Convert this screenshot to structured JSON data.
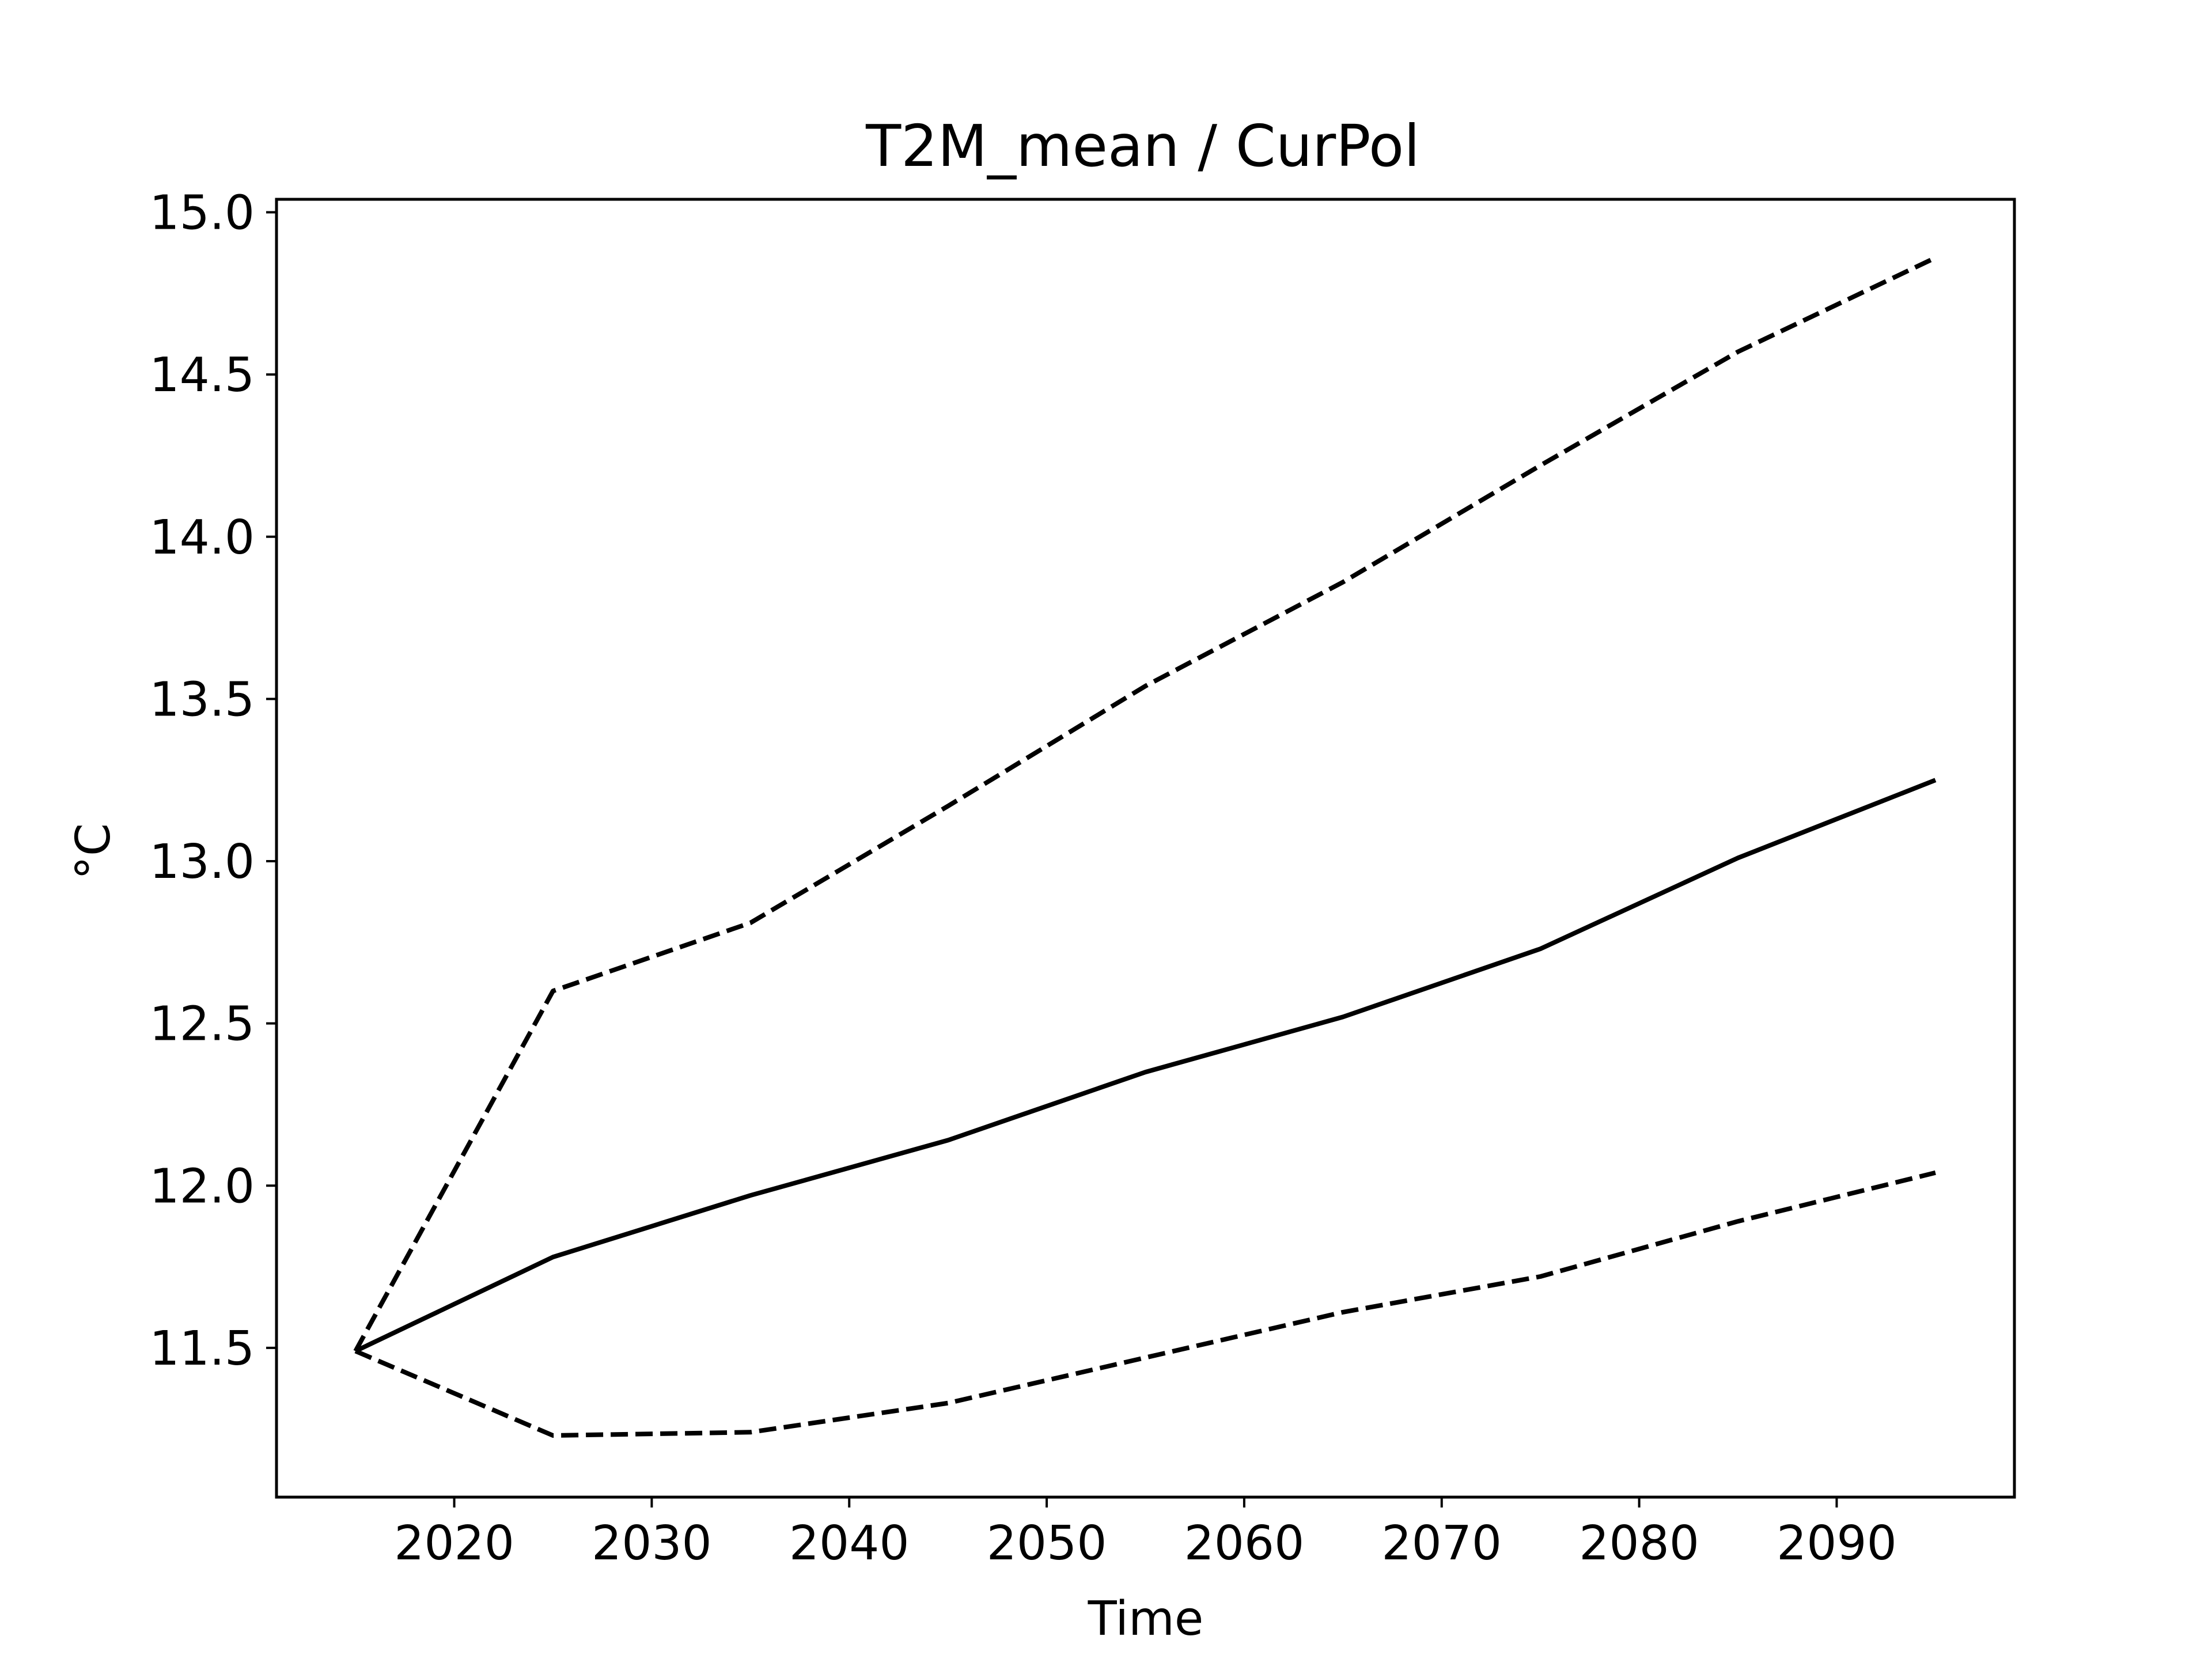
{
  "chart_data": {
    "type": "line",
    "title": "T2M_mean / CurPol",
    "xlabel": "Time",
    "ylabel": "°C",
    "xlim": [
      2011,
      2099
    ],
    "ylim": [
      11.04,
      15.04
    ],
    "xticks": [
      2020,
      2030,
      2040,
      2050,
      2060,
      2070,
      2080,
      2090
    ],
    "yticks": [
      11.5,
      12.0,
      12.5,
      13.0,
      13.5,
      14.0,
      14.5,
      15.0
    ],
    "ytick_labels": [
      "11.5",
      "12.0",
      "12.5",
      "13.0",
      "13.5",
      "14.0",
      "14.5",
      "15.0"
    ],
    "grid": false,
    "x": [
      2015,
      2025,
      2035,
      2045,
      2055,
      2065,
      2075,
      2085,
      2095
    ],
    "series": [
      {
        "style": "solid",
        "color": "#000000",
        "values": [
          11.49,
          11.78,
          11.97,
          12.14,
          12.35,
          12.52,
          12.73,
          13.01,
          13.25
        ]
      },
      {
        "style": "dashed",
        "color": "#000000",
        "values": [
          11.49,
          12.6,
          12.81,
          13.17,
          13.54,
          13.86,
          14.22,
          14.57,
          14.86
        ]
      },
      {
        "style": "dashed",
        "color": "#000000",
        "values": [
          11.49,
          11.23,
          11.24,
          11.33,
          11.47,
          11.61,
          11.72,
          11.89,
          12.04
        ]
      }
    ]
  }
}
